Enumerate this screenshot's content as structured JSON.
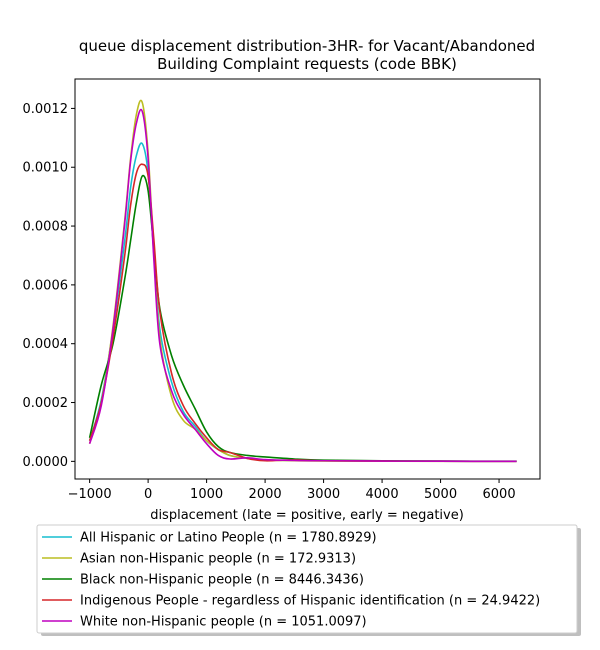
{
  "chart_data": {
    "type": "line",
    "title": "queue displacement distribution-3HR-  for Vacant/Abandoned Building Complaint  requests (code BBK)",
    "title_lines": [
      "queue displacement distribution-3HR-  for Vacant/Abandoned",
      "Building Complaint  requests (code BBK)"
    ],
    "xlabel": "displacement (late = positive, early = negative)",
    "ylabel": "",
    "xlim": [
      -1250,
      6700
    ],
    "ylim": [
      -6e-05,
      0.0013
    ],
    "xticks": [
      -1000,
      0,
      1000,
      2000,
      3000,
      4000,
      5000,
      6000
    ],
    "yticks": [
      0.0,
      0.0002,
      0.0004,
      0.0006,
      0.0008,
      0.001,
      0.0012
    ],
    "ytick_labels": [
      "0.0000",
      "0.0002",
      "0.0004",
      "0.0006",
      "0.0008",
      "0.0010",
      "0.0012"
    ],
    "grid": false,
    "legend_position": "below",
    "x": [
      -1000,
      -800,
      -600,
      -400,
      -300,
      -200,
      -100,
      0,
      100,
      200,
      400,
      600,
      800,
      1000,
      1200,
      1400,
      1700,
      2000,
      2500,
      3000,
      4000,
      5000,
      6300
    ],
    "series": [
      {
        "name": "All Hispanic or Latino People (n = 1780.8929)",
        "color": "#17becf",
        "values": [
          7e-05,
          0.00021,
          0.00045,
          0.00075,
          0.00093,
          0.00104,
          0.00108,
          0.00098,
          0.0007,
          0.00045,
          0.00027,
          0.00017,
          0.00012,
          7e-05,
          4e-05,
          2e-05,
          1e-05,
          5e-06,
          3e-06,
          2e-06,
          1e-06,
          5e-07,
          0.0
        ]
      },
      {
        "name": "Asian non-Hispanic people (n = 172.9313)",
        "color": "#bcbd22",
        "values": [
          6e-05,
          0.0002,
          0.00046,
          0.00082,
          0.00103,
          0.00118,
          0.00122,
          0.00105,
          0.0007,
          0.00042,
          0.00022,
          0.00014,
          0.00011,
          7e-05,
          4e-05,
          2e-05,
          1e-05,
          5e-06,
          2e-06,
          1e-06,
          5e-07,
          2e-07,
          0.0
        ]
      },
      {
        "name": "Black non-Hispanic people (n = 8446.3436)",
        "color": "#008000",
        "values": [
          8e-05,
          0.00026,
          0.0004,
          0.00062,
          0.00075,
          0.00088,
          0.00097,
          0.00092,
          0.00072,
          0.00052,
          0.00036,
          0.00026,
          0.00018,
          0.0001,
          5e-05,
          3e-05,
          2e-05,
          1.5e-05,
          8e-06,
          4e-06,
          2e-06,
          1e-06,
          5e-07
        ]
      },
      {
        "name": "Indigenous People - regardless of Hispanic identification (n = 24.9422)",
        "color": "#d62728",
        "values": [
          7e-05,
          0.0002,
          0.00042,
          0.0007,
          0.00087,
          0.00098,
          0.00101,
          0.00097,
          0.00075,
          0.00051,
          0.0003,
          0.00019,
          0.00013,
          8e-05,
          4e-05,
          3e-05,
          1e-05,
          2e-06,
          5e-06,
          2e-06,
          1e-06,
          5e-07,
          0.0
        ]
      },
      {
        "name": "White non-Hispanic people (n = 1051.0097)",
        "color": "#bf00bf",
        "values": [
          6e-05,
          0.00019,
          0.00045,
          0.00081,
          0.00102,
          0.00115,
          0.00119,
          0.00103,
          0.00068,
          0.0004,
          0.00024,
          0.00016,
          0.00011,
          6e-05,
          2e-05,
          8e-06,
          1.2e-05,
          6e-06,
          3e-06,
          2e-06,
          1e-06,
          5e-07,
          0.0
        ]
      }
    ]
  }
}
